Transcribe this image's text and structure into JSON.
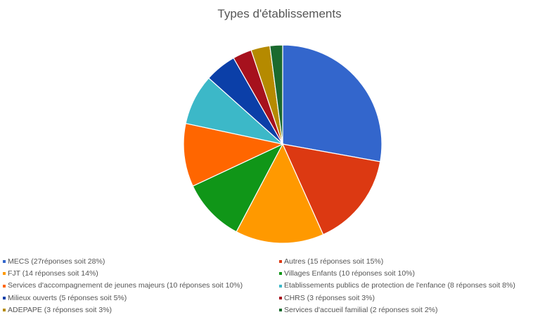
{
  "chart_data": {
    "type": "pie",
    "title": "Types d'établissements",
    "slices": [
      {
        "label": "MECS (27réponses soit 28%)",
        "value": 27,
        "color": "#3366cc"
      },
      {
        "label": "Autres (15 réponses soit 15%)",
        "value": 15,
        "color": "#dc3912"
      },
      {
        "label": "FJT (14 réponses soit 14%)",
        "value": 14,
        "color": "#ff9900"
      },
      {
        "label": "Villages Enfants (10 réponses soit 10%)",
        "value": 10,
        "color": "#109618"
      },
      {
        "label": "Services d'accompagnement de jeunes majeurs (10 réponses soit 10%)",
        "value": 10,
        "color": "#ff6600"
      },
      {
        "label": "Etablissements publics de protection de l'enfance (8 réponses soit 8%)",
        "value": 8,
        "color": "#3cb8c8"
      },
      {
        "label": "Milieux ouverts (5 réponses soit 5%)",
        "value": 5,
        "color": "#0b3fa8"
      },
      {
        "label": "CHRS (3 réponses soit 3%)",
        "value": 3,
        "color": "#a6111d"
      },
      {
        "label": "ADEPAPE (3 réponses soit 3%)",
        "value": 3,
        "color": "#b58a00"
      },
      {
        "label": "Services d'accueil familial (2 réponses soit 2%)",
        "value": 2,
        "color": "#1b6a2e"
      }
    ]
  }
}
